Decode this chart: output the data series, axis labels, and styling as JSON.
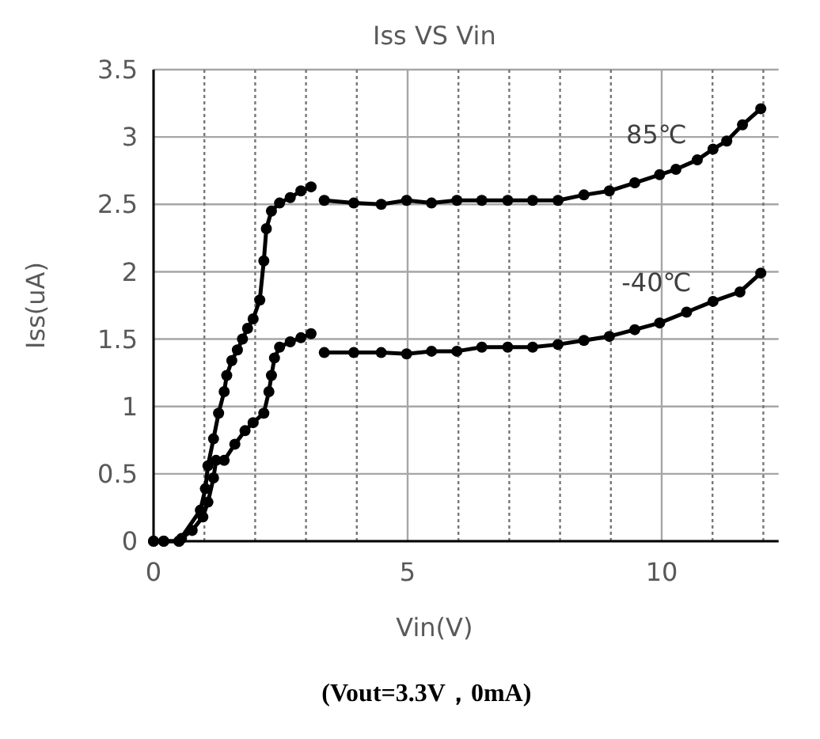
{
  "chart_data": {
    "type": "line",
    "title": "Iss VS Vin",
    "xlabel": "Vin(V)",
    "ylabel": "Iss(uA)",
    "annotations": [
      "(Vout=3.3V，0mA)"
    ],
    "xlim": [
      0,
      12.3
    ],
    "ylim": [
      0,
      3.5
    ],
    "xticks": [
      0,
      {
        "value": 1,
        "label": null
      },
      {
        "value": 2,
        "label": null
      },
      {
        "value": 3,
        "label": null
      },
      {
        "value": 4,
        "label": null
      },
      5,
      {
        "value": 6,
        "label": null
      },
      {
        "value": 7,
        "label": null
      },
      {
        "value": 8,
        "label": null
      },
      {
        "value": 9,
        "label": null
      },
      10,
      {
        "value": 11,
        "label": null
      },
      {
        "value": 12,
        "label": null
      }
    ],
    "yticks": [
      0,
      0.5,
      1,
      1.5,
      2,
      2.5,
      3,
      3.5
    ],
    "grid": true,
    "marker": "circle",
    "line_style": "solid",
    "series": [
      {
        "name": "85℃",
        "color": "#000000",
        "x": [
          0,
          0.2,
          0.5,
          0.92,
          1.02,
          1.07,
          1.18,
          1.28,
          1.39,
          1.44,
          1.54,
          1.65,
          1.75,
          1.85,
          1.96,
          2.09,
          2.17,
          2.22,
          2.32,
          2.48,
          2.69,
          2.9,
          3.1,
          3.2,
          3.36,
          3.94,
          4.48,
          4.98,
          5.47,
          5.97,
          6.46,
          6.97,
          7.46,
          7.96,
          8.47,
          8.97,
          9.47,
          9.96,
          10.28,
          10.7,
          11.01,
          11.28,
          11.59,
          11.95
        ],
        "values": [
          0,
          0,
          0,
          0.23,
          0.39,
          0.56,
          0.76,
          0.95,
          1.11,
          1.23,
          1.34,
          1.42,
          1.5,
          1.58,
          1.65,
          1.79,
          2.08,
          2.32,
          2.45,
          2.51,
          2.55,
          2.6,
          2.63,
          null,
          2.53,
          2.51,
          2.5,
          2.53,
          2.51,
          2.53,
          2.53,
          2.53,
          2.53,
          2.53,
          2.57,
          2.6,
          2.66,
          2.72,
          2.76,
          2.83,
          2.91,
          2.97,
          3.09,
          3.21
        ]
      },
      {
        "name": "-40℃",
        "color": "#000000",
        "x": [
          0,
          0.2,
          0.5,
          0.55,
          0.76,
          0.97,
          1.07,
          1.18,
          1.23,
          1.39,
          1.6,
          1.8,
          1.96,
          2.17,
          2.27,
          2.32,
          2.38,
          2.48,
          2.69,
          2.9,
          3.1,
          3.2,
          3.36,
          3.94,
          4.48,
          4.98,
          5.47,
          5.97,
          6.46,
          6.97,
          7.46,
          7.96,
          8.47,
          8.97,
          9.47,
          9.96,
          10.49,
          11.01,
          11.54,
          11.95
        ],
        "values": [
          0,
          0,
          0,
          0.02,
          0.08,
          0.18,
          0.29,
          0.47,
          0.6,
          0.6,
          0.72,
          0.82,
          0.88,
          0.95,
          1.11,
          1.23,
          1.36,
          1.44,
          1.48,
          1.51,
          1.54,
          null,
          1.4,
          1.4,
          1.4,
          1.39,
          1.41,
          1.41,
          1.44,
          1.44,
          1.44,
          1.46,
          1.49,
          1.52,
          1.57,
          1.62,
          1.7,
          1.78,
          1.85,
          1.99
        ]
      }
    ]
  }
}
